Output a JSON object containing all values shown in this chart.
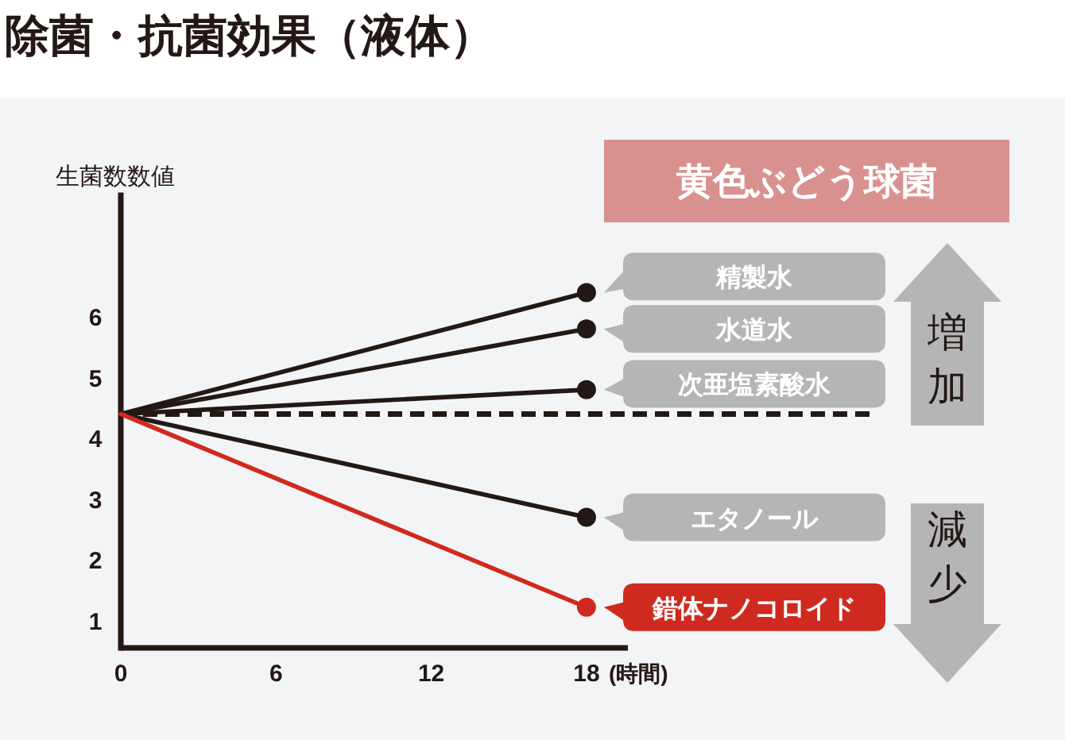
{
  "chart_data": {
    "type": "line",
    "title": "除菌・抗菌効果（液体）",
    "subtitle": "黄色ぶどう球菌",
    "ylabel": "生菌数数値",
    "xlabel": "(時間)",
    "x": [
      0,
      18
    ],
    "xlim": [
      0,
      19.6
    ],
    "xticks": [
      0,
      6,
      12,
      18
    ],
    "ylim": [
      0.55,
      8
    ],
    "yticks": [
      1,
      2,
      3,
      4,
      5,
      6
    ],
    "marker": "circle",
    "series": [
      {
        "name": "精製水",
        "color": "#231815",
        "values": [
          4.4,
          6.4
        ]
      },
      {
        "name": "水道水",
        "color": "#231815",
        "values": [
          4.4,
          5.8
        ]
      },
      {
        "name": "次亜塩素酸水",
        "color": "#231815",
        "values": [
          4.4,
          4.8
        ]
      },
      {
        "name": "エタノール",
        "color": "#231815",
        "values": [
          4.4,
          2.7
        ]
      },
      {
        "name": "錯体ナノコロイド",
        "color": "#cf2a1f",
        "values": [
          4.4,
          1.22
        ]
      }
    ],
    "ref_lines": [
      {
        "axis": "y",
        "value": 4.4,
        "color": "#231815",
        "line_style": "dashed"
      }
    ],
    "annotations": [
      "増加",
      "減少"
    ]
  }
}
